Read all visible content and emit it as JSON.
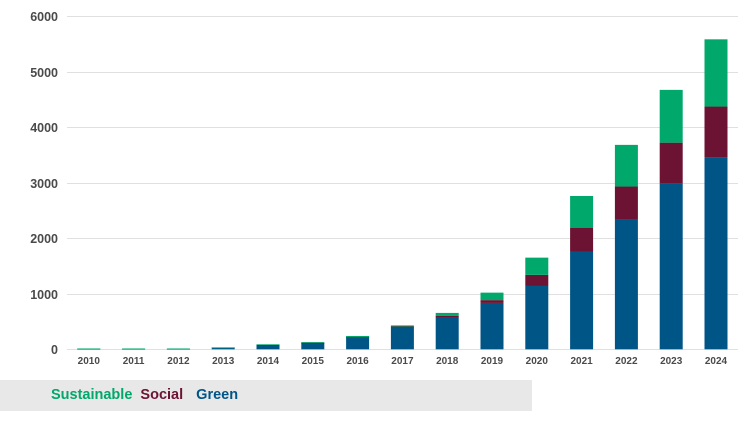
{
  "chart_data": {
    "type": "bar",
    "stacked": true,
    "title": "",
    "xlabel": "",
    "ylabel": "",
    "ylim": [
      0,
      6000
    ],
    "yticks": [
      0,
      1000,
      2000,
      3000,
      4000,
      5000,
      6000
    ],
    "grid": true,
    "categories": [
      "2010",
      "2011",
      "2012",
      "2013",
      "2014",
      "2015",
      "2016",
      "2017",
      "2018",
      "2019",
      "2020",
      "2021",
      "2022",
      "2023",
      "2024"
    ],
    "series": [
      {
        "name": "Green",
        "color": "#005587",
        "values": [
          10,
          10,
          10,
          30,
          75,
          115,
          215,
          400,
          565,
          835,
          1140,
          1760,
          2330,
          2980,
          3460
        ]
      },
      {
        "name": "Social",
        "color": "#6c1232",
        "values": [
          0,
          0,
          0,
          0,
          5,
          5,
          5,
          10,
          40,
          50,
          200,
          430,
          600,
          740,
          910
        ]
      },
      {
        "name": "Sustainable",
        "color": "#00a86b",
        "values": [
          5,
          5,
          5,
          5,
          10,
          10,
          20,
          20,
          50,
          135,
          310,
          570,
          750,
          950,
          1210
        ]
      }
    ],
    "legend": {
      "placement": "bottom-left",
      "entries": [
        {
          "label": "Sustainable",
          "color": "#00a86b"
        },
        {
          "label": "Social",
          "color": "#6c1232"
        },
        {
          "label": "Green",
          "color": "#005587"
        }
      ]
    }
  }
}
